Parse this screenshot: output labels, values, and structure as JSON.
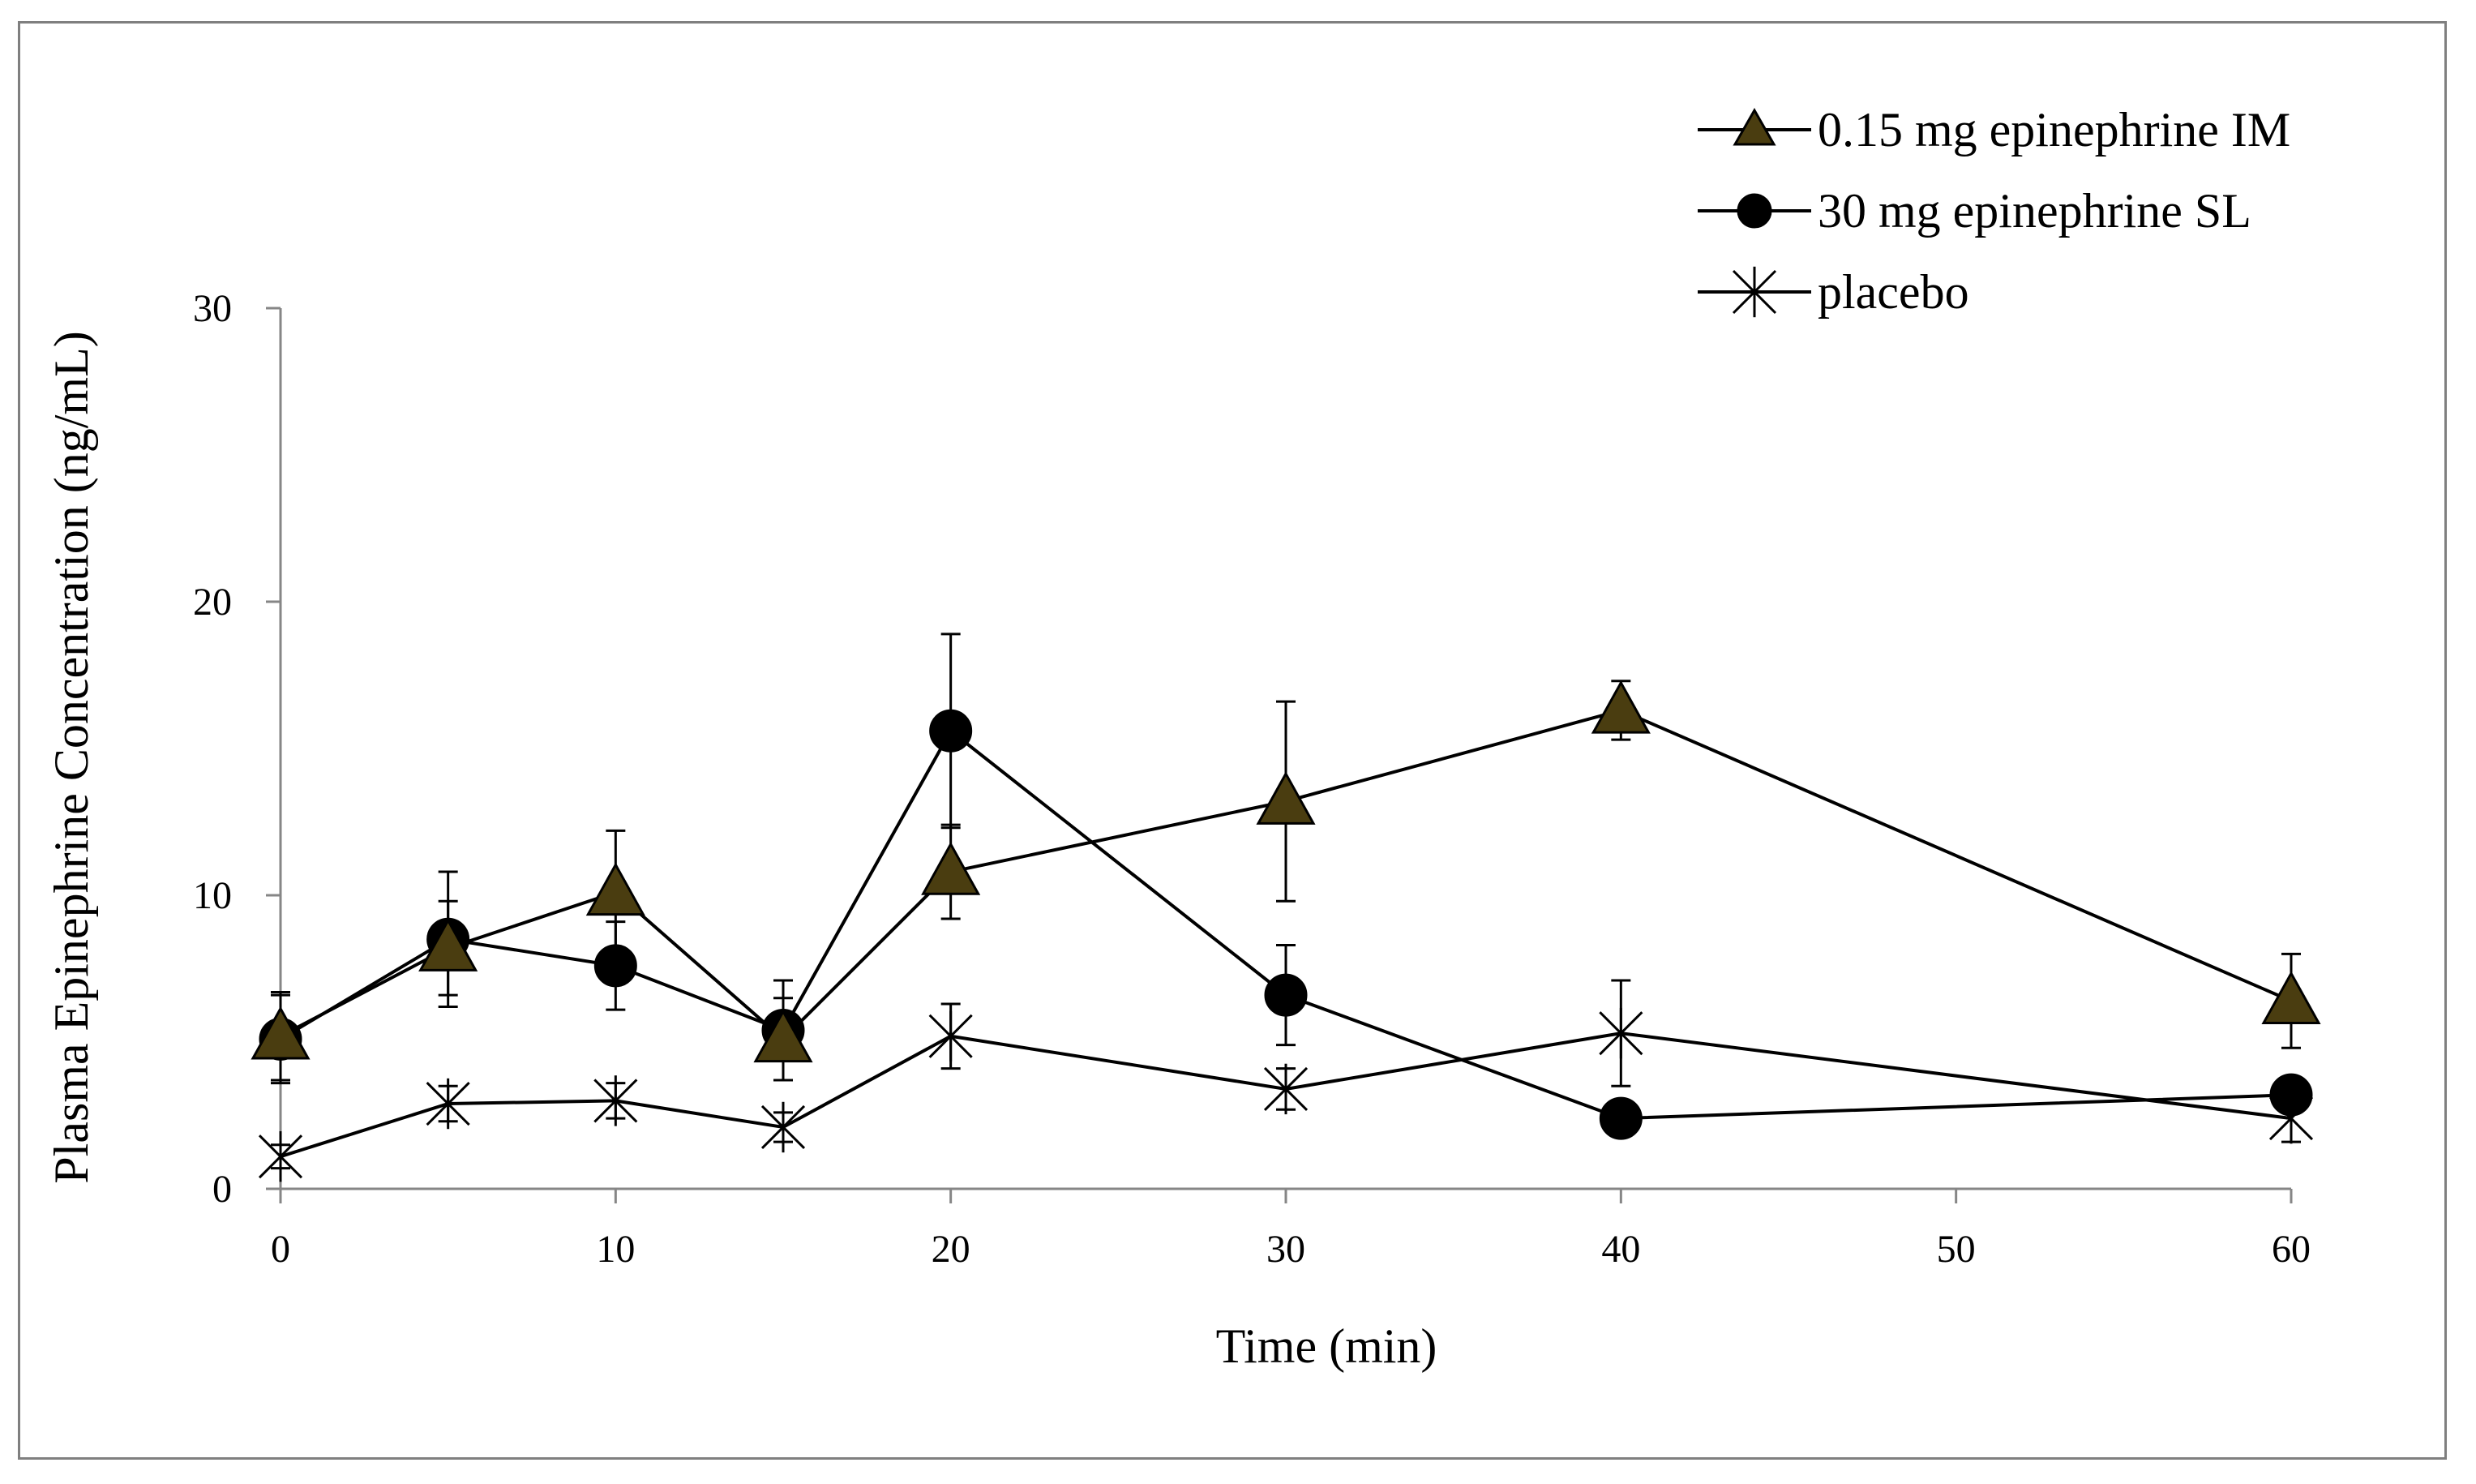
{
  "chart_data": {
    "type": "line",
    "title": "",
    "xlabel": "Time (min)",
    "ylabel": "Plasma Epinephrine Concentration (ng/mL)",
    "xlim": [
      0,
      60
    ],
    "ylim": [
      0,
      30
    ],
    "x_ticks": [
      0,
      10,
      20,
      30,
      40,
      50,
      60
    ],
    "y_ticks": [
      0,
      10,
      20,
      30
    ],
    "grid": false,
    "legend_position": "top-right",
    "series": [
      {
        "name": "0.15 mg epinephrine IM",
        "marker": "triangle",
        "marker_color": "#4a3d10",
        "x": [
          0,
          5,
          10,
          15,
          20,
          30,
          40,
          60
        ],
        "y": [
          5.2,
          8.2,
          10.1,
          5.1,
          10.8,
          13.2,
          16.3,
          6.4
        ],
        "error": [
          1.5,
          1.6,
          2.1,
          1.4,
          1.6,
          3.4,
          1.0,
          1.6
        ]
      },
      {
        "name": "30 mg epinephrine SL",
        "marker": "circle",
        "marker_color": "#000000",
        "x": [
          0,
          5,
          10,
          15,
          20,
          30,
          40,
          60
        ],
        "y": [
          5.1,
          8.5,
          7.6,
          5.4,
          15.6,
          6.6,
          2.4,
          3.2
        ],
        "error": [
          1.5,
          2.3,
          1.5,
          1.7,
          3.3,
          1.7,
          0.3,
          0.4
        ]
      },
      {
        "name": "placebo",
        "marker": "star",
        "marker_color": "#000000",
        "x": [
          0,
          5,
          10,
          15,
          20,
          30,
          40,
          60
        ],
        "y": [
          1.1,
          2.9,
          3.0,
          2.1,
          5.2,
          3.4,
          5.3,
          2.4
        ],
        "error": [
          0.4,
          0.6,
          0.6,
          0.5,
          1.1,
          0.7,
          1.8,
          0.8
        ]
      }
    ]
  }
}
